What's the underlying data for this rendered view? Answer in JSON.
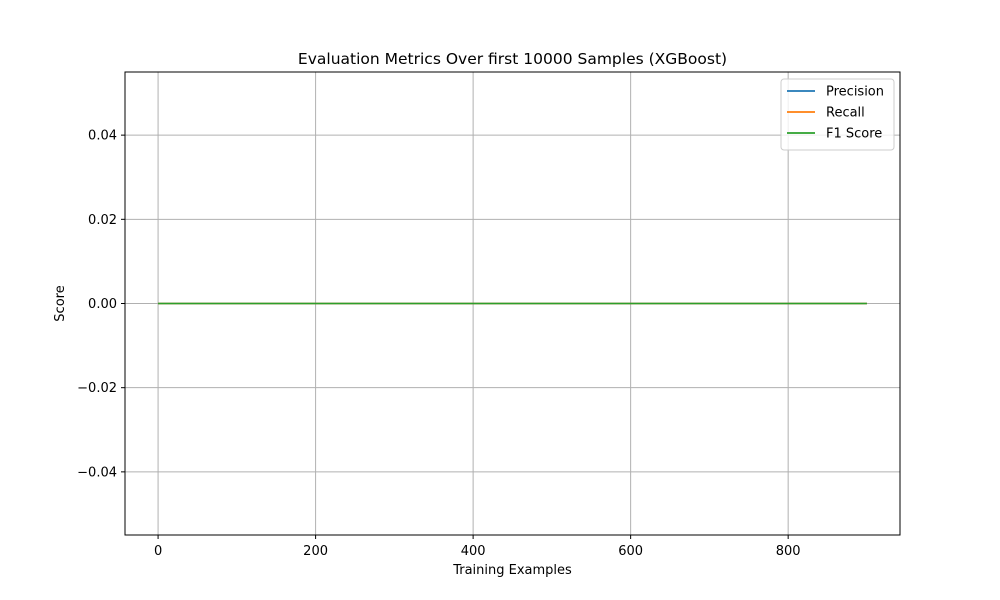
{
  "chart_data": {
    "type": "line",
    "title": "Evaluation Metrics Over first 10000 Samples (XGBoost)",
    "xlabel": "Training Examples",
    "ylabel": "Score",
    "xlim": [
      -42,
      942
    ],
    "ylim": [
      -0.055,
      0.055
    ],
    "x_ticks": [
      0,
      200,
      400,
      600,
      800
    ],
    "x_tick_labels": [
      "0",
      "200",
      "400",
      "600",
      "800"
    ],
    "y_ticks": [
      -0.04,
      -0.02,
      0.0,
      0.02,
      0.04
    ],
    "y_tick_labels": [
      "−0.04",
      "−0.02",
      "0.00",
      "0.02",
      "0.04"
    ],
    "grid": true,
    "legend_position": "top-right",
    "series": [
      {
        "name": "Precision",
        "color": "#1f77b4",
        "x": [
          0,
          900
        ],
        "y": [
          0.0,
          0.0
        ]
      },
      {
        "name": "Recall",
        "color": "#ff7f0e",
        "x": [
          0,
          900
        ],
        "y": [
          0.0,
          0.0
        ]
      },
      {
        "name": "F1 Score",
        "color": "#2ca02c",
        "x": [
          0,
          900
        ],
        "y": [
          0.0,
          0.0
        ]
      }
    ]
  }
}
